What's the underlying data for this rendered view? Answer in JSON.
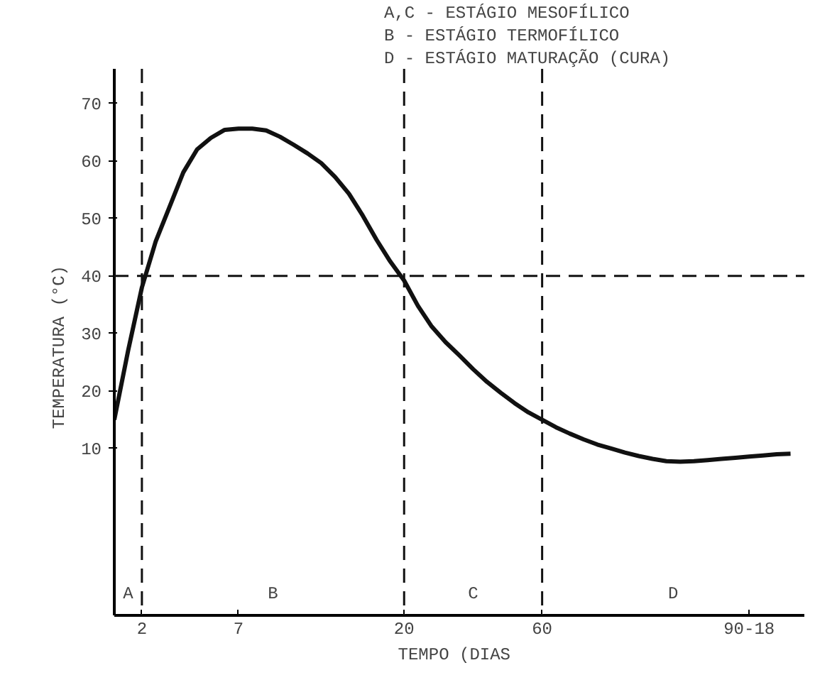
{
  "chart_data": {
    "type": "line",
    "xlabel": "TEMPO  (DIAS",
    "ylabel": "TEMPERATURA  (°C)",
    "annotations": [
      "A,C -  ESTÁGIO MESOFÍLICO",
      "  B -  ESTÁGIO TERMOFÍLICO",
      "  D -  ESTÁGIO MATURAÇÃO (CURA)",
      "A",
      "B",
      "C",
      "D"
    ],
    "categories": [
      null,
      null,
      "2",
      null,
      null,
      null,
      null,
      null,
      null,
      "7",
      null,
      null,
      null,
      null,
      null,
      null,
      null,
      null,
      null,
      null,
      null,
      "20",
      null,
      null,
      null,
      null,
      null,
      null,
      null,
      null,
      null,
      "60",
      null,
      null,
      null,
      null,
      null,
      null,
      null,
      null,
      null,
      null,
      null,
      null,
      null,
      null,
      "90-18",
      null,
      null,
      null
    ],
    "series": [
      {
        "color": "#111111",
        "values": [
          15,
          27,
          38,
          46,
          52,
          58,
          62,
          64,
          65.4,
          65.6,
          65.6,
          65.3,
          64.2,
          62.8,
          61.3,
          59.6,
          57.2,
          54.3,
          50.5,
          46.3,
          42.5,
          39.2,
          34.8,
          31.2,
          28.5,
          26.2,
          23.8,
          21.6,
          19.7,
          17.9,
          16.3,
          15,
          13.7,
          12.6,
          11.6,
          10.7,
          10,
          9.3,
          8.7,
          8.2,
          7.8,
          7.7,
          7.8,
          8,
          8.2,
          8.4,
          8.6,
          8.8,
          9,
          9.1
        ]
      }
    ],
    "ylim": [
      -19,
      76
    ],
    "yticks": [
      10,
      20,
      30,
      40,
      50,
      60,
      70
    ],
    "ref_lines": [
      {
        "axis": "x",
        "value": "2",
        "label": null,
        "line_style": "dashed",
        "color": "#111111"
      },
      {
        "axis": "x",
        "value": "20",
        "label": null,
        "line_style": "dashed",
        "color": "#111111"
      },
      {
        "axis": "x",
        "value": "60",
        "label": null,
        "line_style": "dashed",
        "color": "#111111"
      },
      {
        "axis": "y",
        "value": 40,
        "label": null,
        "line_style": "dashed",
        "color": "#111111"
      }
    ],
    "grid": false,
    "marker": "none",
    "line_style": "solid"
  }
}
